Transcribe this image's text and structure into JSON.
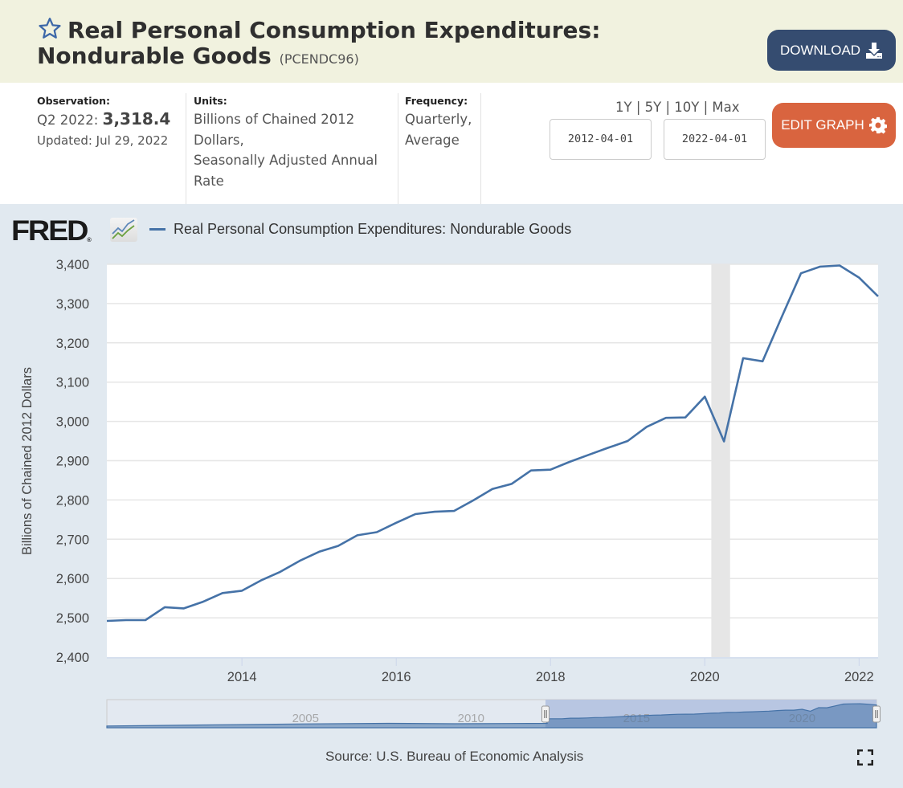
{
  "header": {
    "title": "Real Personal Consumption Expenditures: Nondurable Goods",
    "series_id": "(PCENDC96)",
    "favorite_icon": "star-icon",
    "download_label": "DOWNLOAD",
    "download_icon": "download-icon"
  },
  "meta": {
    "observation_label": "Observation:",
    "observation_period": "Q2 2022:",
    "observation_value": "3,318.4",
    "updated": "Updated: Jul 29, 2022",
    "units_label": "Units:",
    "units_lines": [
      "Billions of Chained 2012",
      "Dollars,",
      "Seasonally Adjusted Annual",
      "Rate"
    ],
    "frequency_label": "Frequency:",
    "frequency_lines": [
      "Quarterly,",
      "Average"
    ]
  },
  "controls": {
    "ranges": [
      "1Y",
      "5Y",
      "10Y",
      "Max"
    ],
    "start_date": "2012-04-01",
    "end_date": "2022-04-01",
    "edit_label": "EDIT GRAPH",
    "edit_icon": "gear-icon"
  },
  "chart_panel": {
    "logo_text": "FRED",
    "source": "Source: U.S. Bureau of Economic Analysis",
    "fullscreen_icon": "fullscreen-icon",
    "navigator_labels": [
      "2005",
      "2010",
      "2015",
      "2020"
    ]
  },
  "chart_data": {
    "type": "line",
    "title": "Real Personal Consumption Expenditures: Nondurable Goods",
    "xlabel": "",
    "ylabel": "Billions of Chained 2012 Dollars",
    "ylim": [
      2400,
      3400
    ],
    "xlim": [
      "2012-04-01",
      "2022-04-01"
    ],
    "y_ticks": [
      2400,
      2500,
      2600,
      2700,
      2800,
      2900,
      3000,
      3100,
      3200,
      3300,
      3400
    ],
    "y_tick_labels": [
      "2,400",
      "2,500",
      "2,600",
      "2,700",
      "2,800",
      "2,900",
      "3,000",
      "3,100",
      "3,200",
      "3,300",
      "3,400"
    ],
    "x_ticks": [
      2014,
      2016,
      2018,
      2020,
      2022
    ],
    "x_tick_labels": [
      "2014",
      "2016",
      "2018",
      "2020",
      "2022"
    ],
    "grid": true,
    "legend": "top-left",
    "recession_shading": [
      {
        "start": "2020-02-01",
        "end": "2020-04-30"
      }
    ],
    "series": [
      {
        "name": "Real Personal Consumption Expenditures: Nondurable Goods",
        "color": "#4572a7",
        "x": [
          "2012-04-01",
          "2012-07-01",
          "2012-10-01",
          "2013-01-01",
          "2013-04-01",
          "2013-07-01",
          "2013-10-01",
          "2014-01-01",
          "2014-04-01",
          "2014-07-01",
          "2014-10-01",
          "2015-01-01",
          "2015-04-01",
          "2015-07-01",
          "2015-10-01",
          "2016-01-01",
          "2016-04-01",
          "2016-07-01",
          "2016-10-01",
          "2017-01-01",
          "2017-04-01",
          "2017-07-01",
          "2017-10-01",
          "2018-01-01",
          "2018-04-01",
          "2018-07-01",
          "2018-10-01",
          "2019-01-01",
          "2019-04-01",
          "2019-07-01",
          "2019-10-01",
          "2020-01-01",
          "2020-04-01",
          "2020-07-01",
          "2020-10-01",
          "2021-01-01",
          "2021-04-01",
          "2021-07-01",
          "2021-10-01",
          "2022-01-01",
          "2022-04-01"
        ],
        "values": [
          2492,
          2494,
          2494,
          2527,
          2524,
          2541,
          2563,
          2569,
          2595,
          2617,
          2645,
          2668,
          2683,
          2710,
          2718,
          2742,
          2764,
          2770,
          2772,
          2799,
          2828,
          2841,
          2875,
          2877,
          2897,
          2915,
          2933,
          2950,
          2986,
          3009,
          3010,
          3063,
          2949,
          3161,
          3153,
          3267,
          3377,
          3394,
          3397,
          3366,
          3318.4
        ]
      }
    ]
  }
}
